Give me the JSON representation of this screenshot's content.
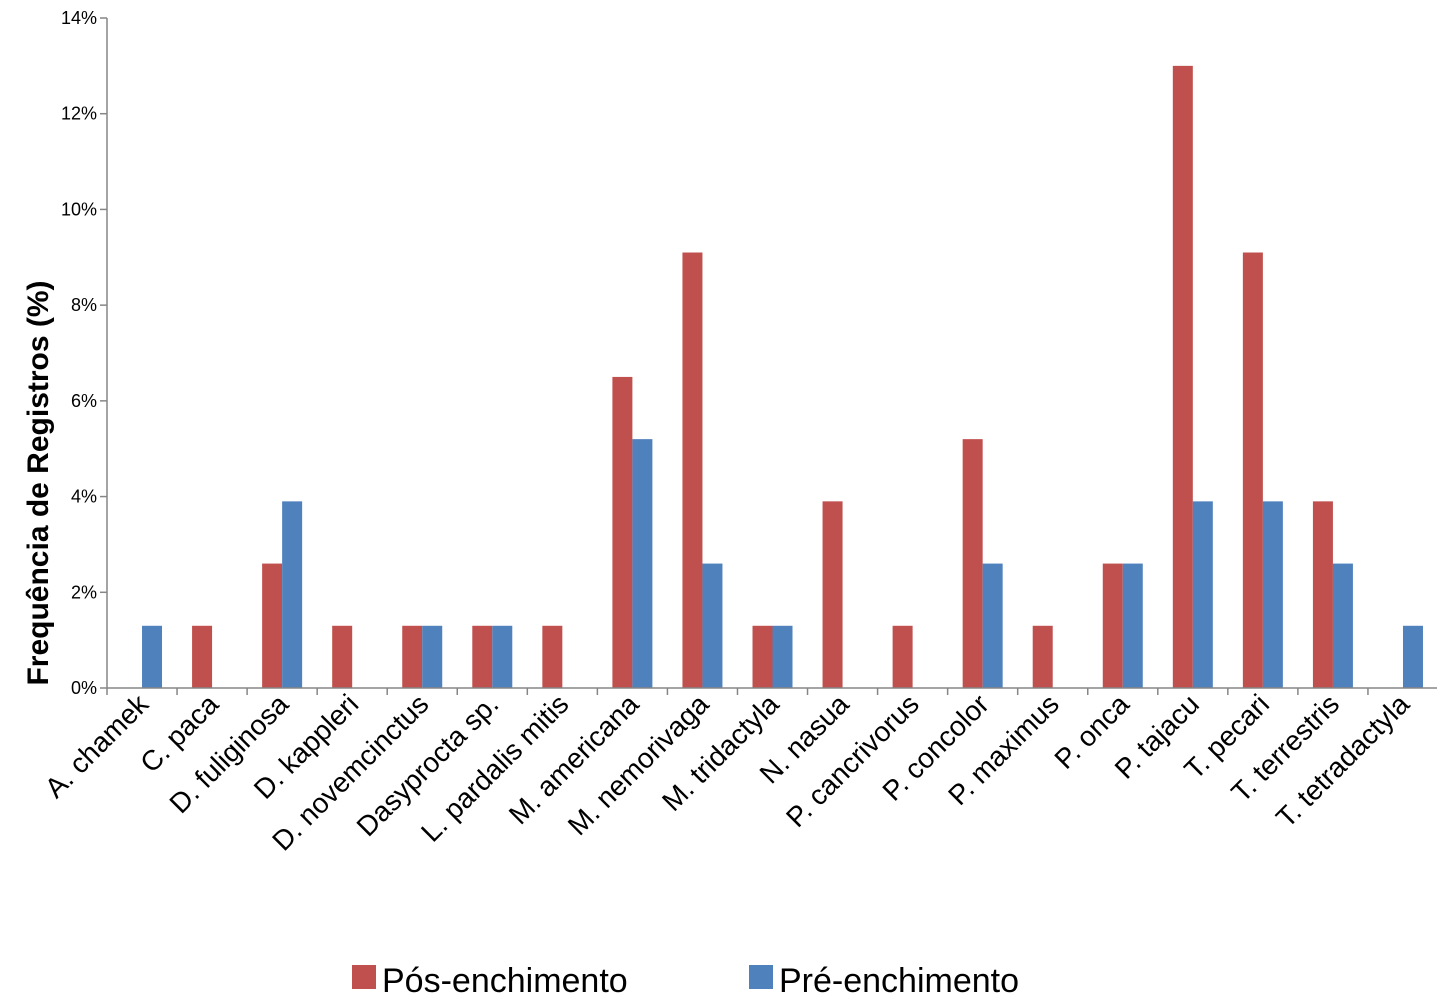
{
  "chart_data": {
    "type": "bar",
    "ylabel": "Frequência de Registros (%)",
    "xlabel": "",
    "ylim": [
      0,
      14
    ],
    "y_ticks": [
      "0%",
      "2%",
      "4%",
      "6%",
      "8%",
      "10%",
      "12%",
      "14%"
    ],
    "grid": false,
    "legend_position": "bottom",
    "categories": [
      "A. chamek",
      "C. paca",
      "D. fuliginosa",
      "D. kappleri",
      "D. novemcinctus",
      "Dasyprocta sp.",
      "L. pardalis mitis",
      "M. americana",
      "M. nemorivaga",
      "M. tridactyla",
      "N. nasua",
      "P. cancrivorus",
      "P. concolor",
      "P. maximus",
      "P. onca",
      "P. tajacu",
      "T. pecari",
      "T. terrestris",
      "T. tetradactyla"
    ],
    "series": [
      {
        "name": "Pós-enchimento",
        "color": "#C0504D",
        "values": [
          0,
          1.3,
          2.6,
          1.3,
          1.3,
          1.3,
          1.3,
          6.5,
          9.1,
          1.3,
          3.9,
          1.3,
          5.2,
          1.3,
          2.6,
          13.0,
          9.1,
          3.9,
          0
        ]
      },
      {
        "name": "Pré-enchimento",
        "color": "#4F81BD",
        "values": [
          1.3,
          0,
          3.9,
          0,
          1.3,
          1.3,
          0,
          5.2,
          2.6,
          1.3,
          0,
          0,
          2.6,
          0,
          2.6,
          3.9,
          3.9,
          2.6,
          1.3
        ]
      }
    ]
  }
}
